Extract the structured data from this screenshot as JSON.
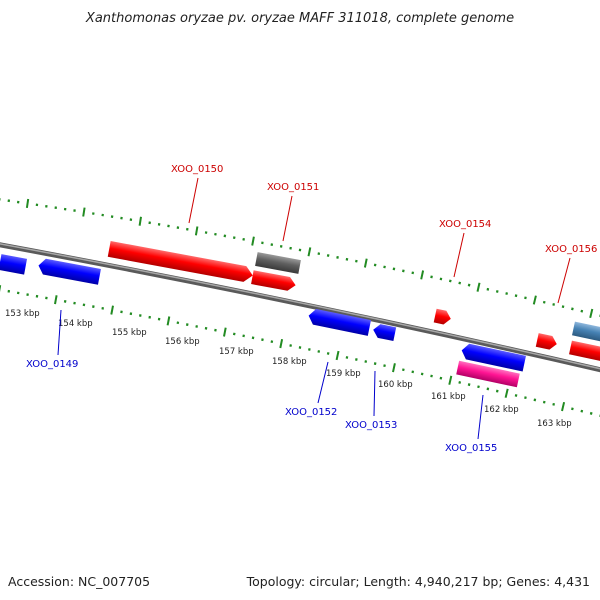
{
  "title": "Xanthomonas oryzae pv. oryzae MAFF 311018, complete genome",
  "footer": {
    "accession": "Accession: NC_007705",
    "summary": "Topology: circular; Length: 4,940,217 bp; Genes: 4,431"
  },
  "colors": {
    "backbone": "#7f7f7f",
    "tick": "#228b22",
    "forward_gene": "#ff0000",
    "reverse_gene": "#0000ff",
    "forward_label": "#cc0000",
    "reverse_label": "#0000cc",
    "grey_gene": "#606060",
    "pink_gene": "#ff1493",
    "steel_gene": "#4682b4"
  },
  "ruler": {
    "unit": "kbp",
    "labels": [
      "153 kbp",
      "154 kbp",
      "155 kbp",
      "156 kbp",
      "157 kbp",
      "158 kbp",
      "159 kbp",
      "160 kbp",
      "161 kbp",
      "162 kbp",
      "163 kbp"
    ]
  },
  "gene_labels": [
    {
      "name": "XOO_0149",
      "strand": "reverse"
    },
    {
      "name": "XOO_0150",
      "strand": "forward"
    },
    {
      "name": "XOO_0151",
      "strand": "forward"
    },
    {
      "name": "XOO_0152",
      "strand": "reverse"
    },
    {
      "name": "XOO_0153",
      "strand": "reverse"
    },
    {
      "name": "XOO_0154",
      "strand": "forward"
    },
    {
      "name": "XOO_0155",
      "strand": "reverse"
    },
    {
      "name": "XOO_0156",
      "strand": "forward"
    }
  ]
}
